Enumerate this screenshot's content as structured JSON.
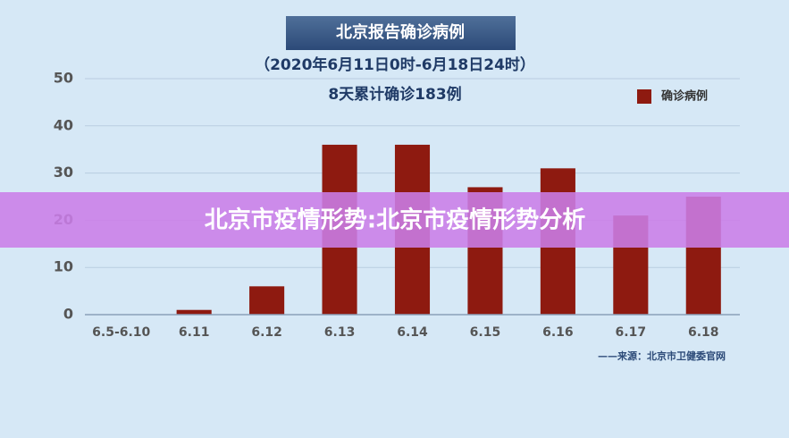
{
  "chart_data": {
    "type": "bar",
    "title": "北京报告确诊病例",
    "subtitle": "（2020年6月11日0时-6月18日24时）",
    "annotation": "8天累计确诊183例",
    "source": "——来源：北京市卫健委官网",
    "categories": [
      "6.5-6.10",
      "6.11",
      "6.12",
      "6.13",
      "6.14",
      "6.15",
      "6.16",
      "6.17",
      "6.18"
    ],
    "series": [
      {
        "name": "确诊病例",
        "color": "#8e1a10",
        "values": [
          0,
          1,
          6,
          36,
          36,
          27,
          31,
          21,
          25
        ]
      }
    ],
    "ylim": [
      0,
      50
    ],
    "yticks": [
      0,
      10,
      20,
      30,
      40,
      50
    ],
    "grid": true,
    "legend": "top-right"
  },
  "overlay": "北京市疫情形势:北京市疫情形势分析"
}
